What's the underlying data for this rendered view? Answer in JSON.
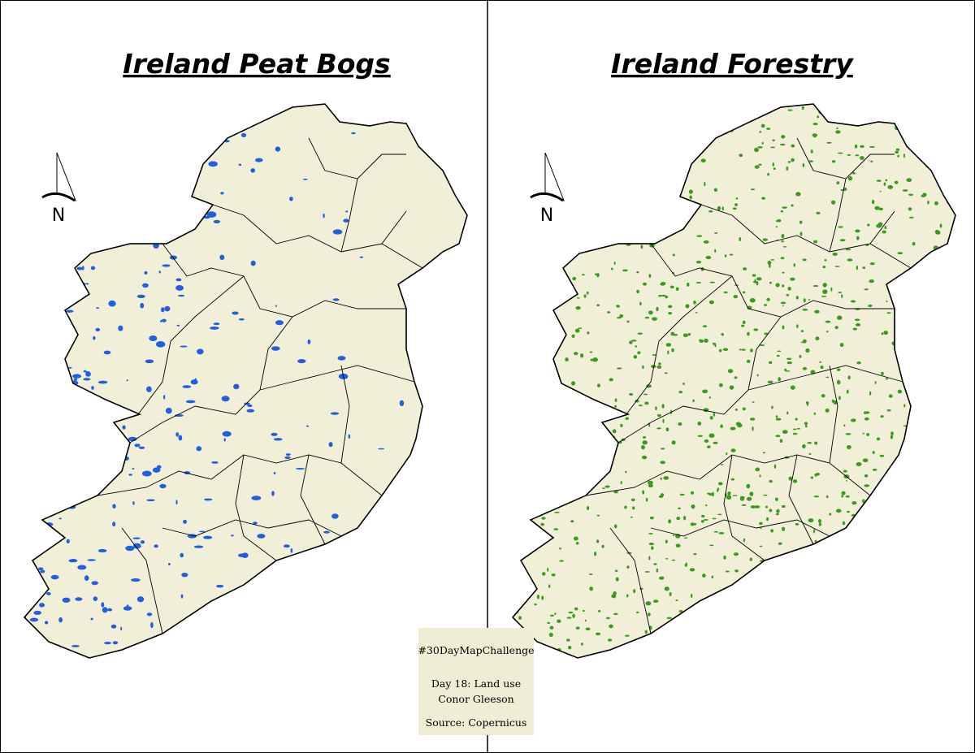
{
  "panels": [
    {
      "title": "Ireland Peat Bogs",
      "north": "N"
    },
    {
      "title": "Ireland Forestry",
      "north": "N"
    }
  ],
  "info": {
    "hashtag": "#30DayMapChallenge",
    "day": "Day 18: Land use",
    "author": "Conor Gleeson",
    "source": "Source: Copernicus"
  }
}
